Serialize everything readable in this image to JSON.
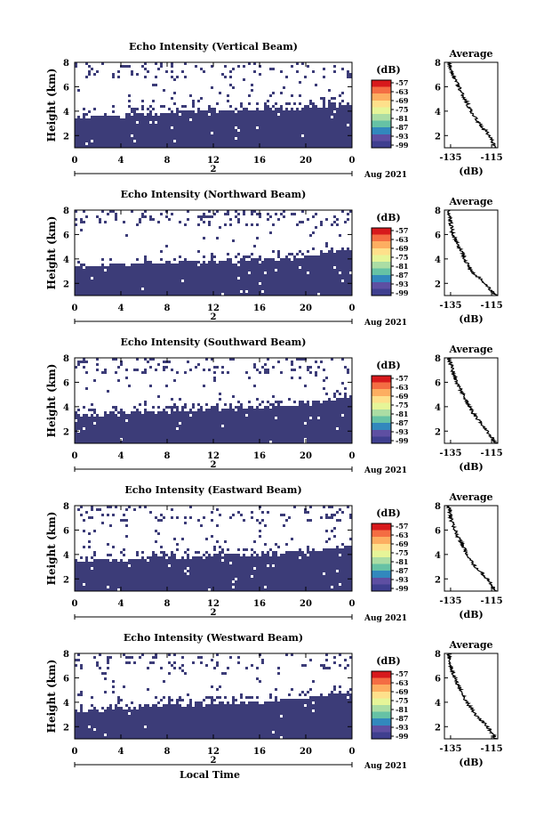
{
  "figure": {
    "x_axis_label": "Local Time",
    "colorbar_unit": "(dB)",
    "colorbar_ticks": [
      "-57",
      "-63",
      "-69",
      "-75",
      "-81",
      "-87",
      "-93",
      "-99"
    ],
    "colorbar_colors": [
      "#d7191c",
      "#f46d43",
      "#fdae61",
      "#fee08b",
      "#e6f598",
      "#abdda4",
      "#66c2a5",
      "#3288bd",
      "#5e4fa2",
      "#3f3f8f"
    ],
    "heatmap_fill": "#3c3c78",
    "profile_title": "Average",
    "profile_xlabel": "(dB)",
    "profile_xticks": [
      "-135",
      "-115"
    ],
    "height_ticks": [
      "8",
      "6",
      "4",
      "2"
    ],
    "time_ticks": [
      "0",
      "4",
      "8",
      "12",
      "16",
      "20",
      "0"
    ],
    "date_mid_label": "2",
    "date_label": "Aug 2021",
    "y_axis_label": "Height (km)"
  },
  "chart_data": [
    {
      "type": "heatmap",
      "title": "Echo Intensity (Vertical Beam)",
      "xlabel": "",
      "ylabel": "Height (km)",
      "xlim": [
        0,
        24
      ],
      "ylim": [
        1,
        8
      ],
      "x_ticks": [
        "0",
        "4",
        "8",
        "12",
        "16",
        "20",
        "0"
      ],
      "y_ticks": [
        "8",
        "6",
        "4",
        "2"
      ],
      "colorbar": {
        "label": "(dB)",
        "ticks": [
          -57,
          -63,
          -69,
          -75,
          -81,
          -87,
          -93,
          -99
        ]
      },
      "strong_echo_top_km": [
        {
          "t": 0,
          "h": 3.5
        },
        {
          "t": 4,
          "h": 3.6
        },
        {
          "t": 8,
          "h": 3.8
        },
        {
          "t": 12,
          "h": 4.0
        },
        {
          "t": 16,
          "h": 4.1
        },
        {
          "t": 20,
          "h": 4.3
        },
        {
          "t": 24,
          "h": 4.6
        }
      ],
      "profile": {
        "title": "Average",
        "xlabel": "(dB)",
        "xlim": [
          -138,
          -112
        ],
        "ylim": [
          1,
          8
        ],
        "height_km": [
          1,
          2,
          3,
          4,
          5,
          6,
          7,
          8
        ],
        "value_db": [
          -113,
          -116,
          -121,
          -125,
          -128,
          -131,
          -134,
          -136
        ]
      }
    },
    {
      "type": "heatmap",
      "title": "Echo Intensity (Northward Beam)",
      "xlabel": "",
      "ylabel": "Height (km)",
      "xlim": [
        0,
        24
      ],
      "ylim": [
        1,
        8
      ],
      "x_ticks": [
        "0",
        "4",
        "8",
        "12",
        "16",
        "20",
        "0"
      ],
      "y_ticks": [
        "8",
        "6",
        "4",
        "2"
      ],
      "colorbar": {
        "label": "(dB)",
        "ticks": [
          -57,
          -63,
          -69,
          -75,
          -81,
          -87,
          -93,
          -99
        ]
      },
      "strong_echo_top_km": [
        {
          "t": 0,
          "h": 3.3
        },
        {
          "t": 4,
          "h": 3.5
        },
        {
          "t": 8,
          "h": 3.6
        },
        {
          "t": 12,
          "h": 3.7
        },
        {
          "t": 16,
          "h": 3.8
        },
        {
          "t": 20,
          "h": 4.2
        },
        {
          "t": 24,
          "h": 4.8
        }
      ],
      "profile": {
        "title": "Average",
        "xlabel": "(dB)",
        "xlim": [
          -138,
          -112
        ],
        "ylim": [
          1,
          8
        ],
        "height_km": [
          1,
          2,
          3,
          4,
          5,
          6,
          7,
          8
        ],
        "value_db": [
          -113,
          -118,
          -125,
          -128,
          -131,
          -134,
          -135,
          -136
        ]
      }
    },
    {
      "type": "heatmap",
      "title": "Echo Intensity (Southward Beam)",
      "xlabel": "",
      "ylabel": "Height (km)",
      "xlim": [
        0,
        24
      ],
      "ylim": [
        1,
        8
      ],
      "x_ticks": [
        "0",
        "4",
        "8",
        "12",
        "16",
        "20",
        "0"
      ],
      "y_ticks": [
        "8",
        "6",
        "4",
        "2"
      ],
      "colorbar": {
        "label": "(dB)",
        "ticks": [
          -57,
          -63,
          -69,
          -75,
          -81,
          -87,
          -93,
          -99
        ]
      },
      "strong_echo_top_km": [
        {
          "t": 0,
          "h": 3.2
        },
        {
          "t": 4,
          "h": 3.5
        },
        {
          "t": 8,
          "h": 3.6
        },
        {
          "t": 12,
          "h": 3.8
        },
        {
          "t": 16,
          "h": 3.9
        },
        {
          "t": 20,
          "h": 4.2
        },
        {
          "t": 24,
          "h": 4.9
        }
      ],
      "profile": {
        "title": "Average",
        "xlabel": "(dB)",
        "xlim": [
          -138,
          -112
        ],
        "ylim": [
          1,
          8
        ],
        "height_km": [
          1,
          2,
          3,
          4,
          5,
          6,
          7,
          8
        ],
        "value_db": [
          -113,
          -117,
          -122,
          -126,
          -129,
          -132,
          -134,
          -136
        ]
      }
    },
    {
      "type": "heatmap",
      "title": "Echo Intensity (Eastward Beam)",
      "xlabel": "",
      "ylabel": "Height (km)",
      "xlim": [
        0,
        24
      ],
      "ylim": [
        1,
        8
      ],
      "x_ticks": [
        "0",
        "4",
        "8",
        "12",
        "16",
        "20",
        "0"
      ],
      "y_ticks": [
        "8",
        "6",
        "4",
        "2"
      ],
      "colorbar": {
        "label": "(dB)",
        "ticks": [
          -57,
          -63,
          -69,
          -75,
          -81,
          -87,
          -93,
          -99
        ]
      },
      "strong_echo_top_km": [
        {
          "t": 0,
          "h": 3.4
        },
        {
          "t": 4,
          "h": 3.6
        },
        {
          "t": 8,
          "h": 3.7
        },
        {
          "t": 12,
          "h": 3.9
        },
        {
          "t": 16,
          "h": 4.0
        },
        {
          "t": 20,
          "h": 4.3
        },
        {
          "t": 24,
          "h": 4.8
        }
      ],
      "profile": {
        "title": "Average",
        "xlabel": "(dB)",
        "xlim": [
          -138,
          -112
        ],
        "ylim": [
          1,
          8
        ],
        "height_km": [
          1,
          2,
          3,
          4,
          5,
          6,
          7,
          8
        ],
        "value_db": [
          -113,
          -117,
          -123,
          -127,
          -130,
          -133,
          -135,
          -136
        ]
      }
    },
    {
      "type": "heatmap",
      "title": "Echo Intensity (Westward Beam)",
      "xlabel": "Local Time",
      "ylabel": "Height (km)",
      "xlim": [
        0,
        24
      ],
      "ylim": [
        1,
        8
      ],
      "x_ticks": [
        "0",
        "4",
        "8",
        "12",
        "16",
        "20",
        "0"
      ],
      "y_ticks": [
        "8",
        "6",
        "4",
        "2"
      ],
      "colorbar": {
        "label": "(dB)",
        "ticks": [
          -57,
          -63,
          -69,
          -75,
          -81,
          -87,
          -93,
          -99
        ]
      },
      "strong_echo_top_km": [
        {
          "t": 0,
          "h": 3.3
        },
        {
          "t": 4,
          "h": 3.5
        },
        {
          "t": 8,
          "h": 3.7
        },
        {
          "t": 12,
          "h": 3.8
        },
        {
          "t": 16,
          "h": 4.0
        },
        {
          "t": 20,
          "h": 4.3
        },
        {
          "t": 24,
          "h": 4.9
        }
      ],
      "profile": {
        "title": "Average",
        "xlabel": "(dB)",
        "xlim": [
          -138,
          -112
        ],
        "ylim": [
          1,
          8
        ],
        "height_km": [
          1,
          2,
          3,
          4,
          5,
          6,
          7,
          8
        ],
        "value_db": [
          -113,
          -117,
          -123,
          -127,
          -130,
          -133,
          -135,
          -136
        ]
      }
    }
  ]
}
